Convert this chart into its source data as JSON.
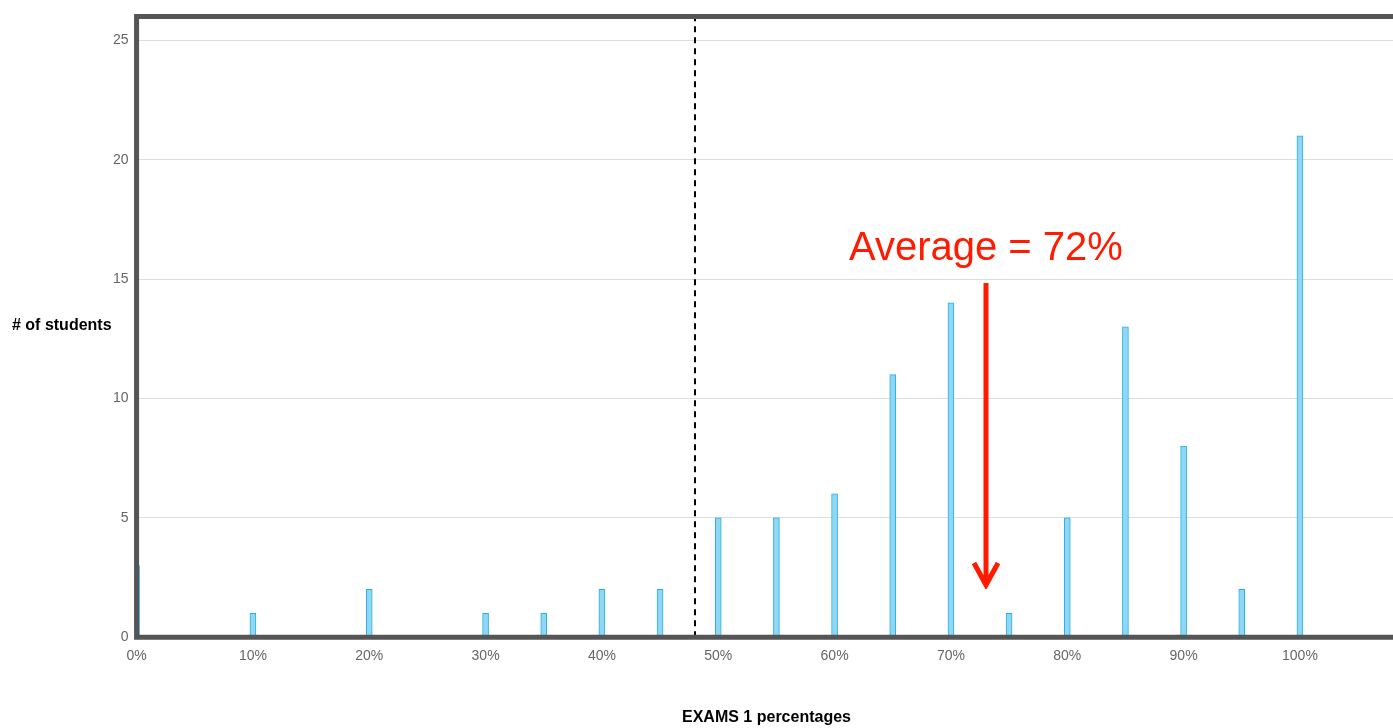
{
  "chart_data": {
    "type": "bar",
    "xlabel": "EXAMS 1 percentages",
    "ylabel": "# of students",
    "x": [
      0,
      10,
      20,
      30,
      35,
      40,
      45,
      50,
      55,
      60,
      65,
      70,
      75,
      80,
      85,
      90,
      95,
      100
    ],
    "values": [
      3,
      1,
      2,
      1,
      1,
      2,
      2,
      5,
      5,
      6,
      11,
      14,
      1,
      5,
      13,
      8,
      2,
      21
    ],
    "color": "#8fd8f5",
    "xlim": [
      0,
      108
    ],
    "xticks": [
      {
        "value": 0,
        "label": "0%"
      },
      {
        "value": 10,
        "label": "10%"
      },
      {
        "value": 20,
        "label": "20%"
      },
      {
        "value": 30,
        "label": "30%"
      },
      {
        "value": 40,
        "label": "40%"
      },
      {
        "value": 50,
        "label": "50%"
      },
      {
        "value": 60,
        "label": "60%"
      },
      {
        "value": 70,
        "label": "70%"
      },
      {
        "value": 80,
        "label": "80%"
      },
      {
        "value": 90,
        "label": "90%"
      },
      {
        "value": 100,
        "label": "100%"
      }
    ],
    "ylim": [
      0,
      26
    ],
    "yticks": [
      0,
      5,
      10,
      15,
      20,
      25
    ],
    "grid": "y",
    "legend": false,
    "ref_lines": [
      {
        "axis": "x",
        "value": 48,
        "color": "#000000",
        "line_style": "dashed"
      }
    ],
    "annotations": [
      "Average = 72%"
    ]
  }
}
